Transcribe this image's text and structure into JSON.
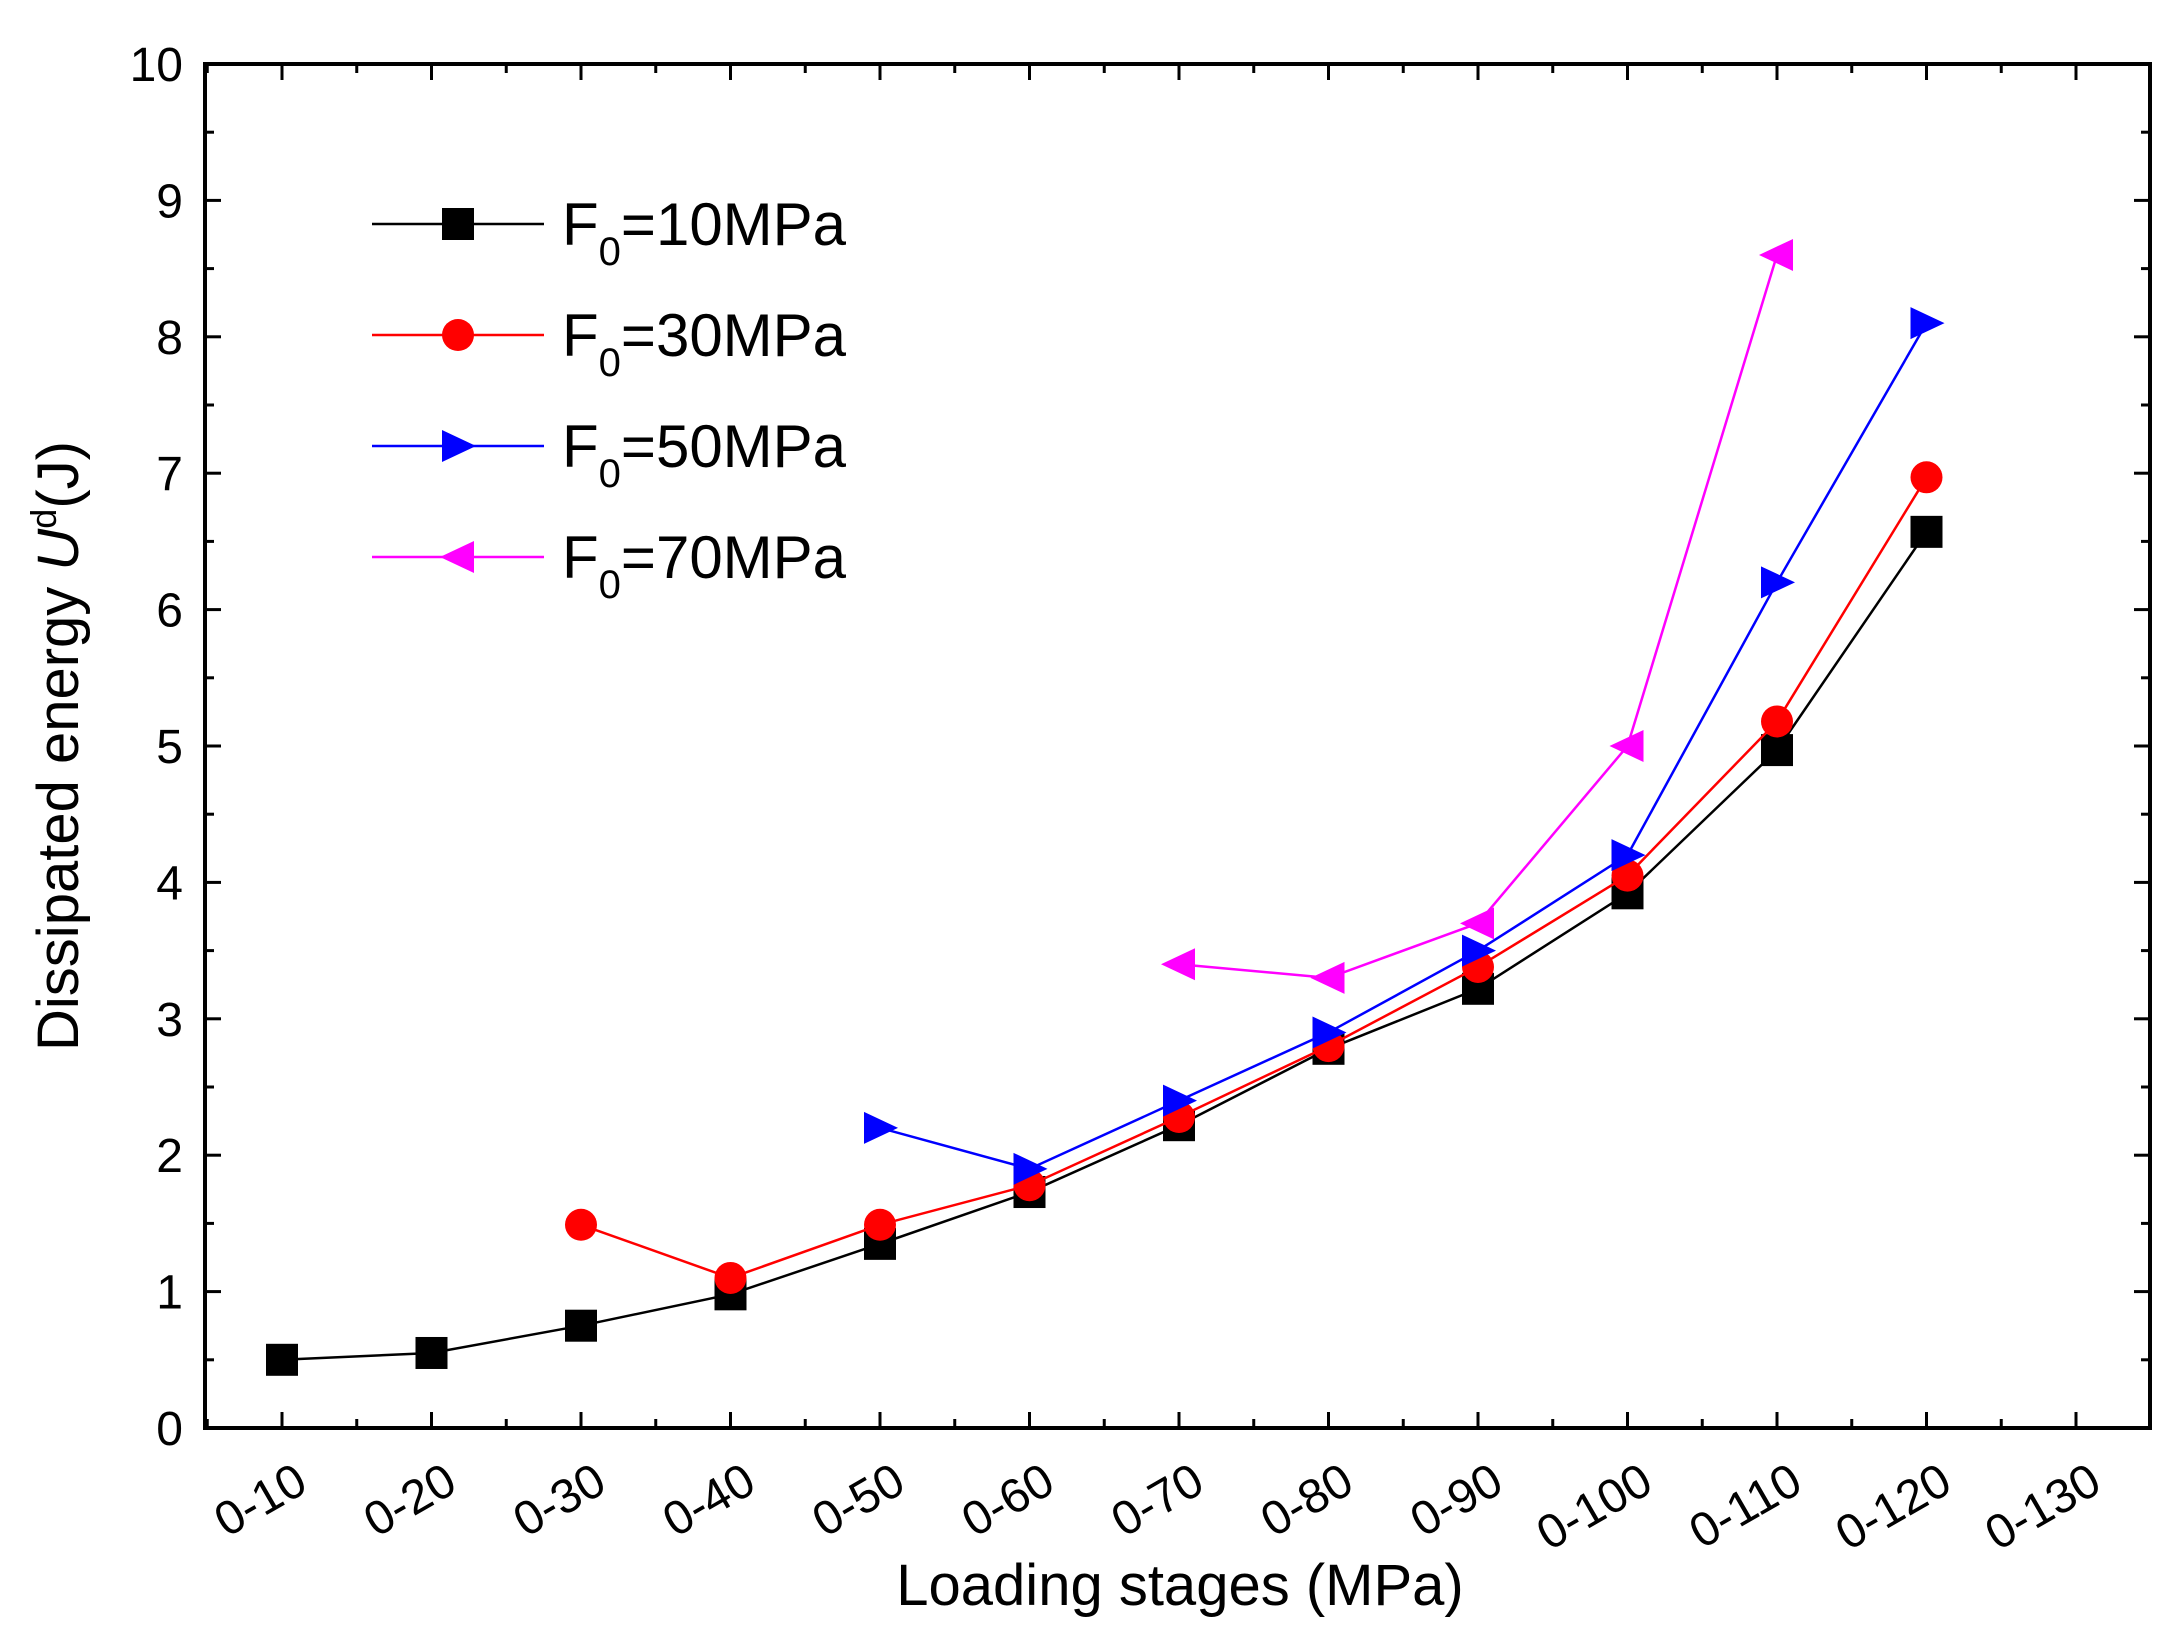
{
  "chart_data": {
    "type": "line",
    "xlabel": "Loading stages (MPa)",
    "ylabel_parts": {
      "prefix": "Dissipated energy ",
      "symbol": "U",
      "superscript": "d",
      "suffix": "(J)"
    },
    "categories": [
      "0-10",
      "0-20",
      "0-30",
      "0-40",
      "0-50",
      "0-60",
      "0-70",
      "0-80",
      "0-90",
      "0-100",
      "0-110",
      "0-120",
      "0-130"
    ],
    "ylim": [
      0,
      10
    ],
    "yticks": [
      "0",
      "1",
      "2",
      "3",
      "4",
      "5",
      "6",
      "7",
      "8",
      "9",
      "10"
    ],
    "grid": false,
    "legend_position": "top-left",
    "series": [
      {
        "name": "F0=10MPa",
        "legend": {
          "main": "F",
          "sub": "0",
          "rest": "=10MPa"
        },
        "color": "#000000",
        "marker": "square",
        "values": [
          0.5,
          0.55,
          0.75,
          0.98,
          1.35,
          1.73,
          2.22,
          2.78,
          3.22,
          3.92,
          4.97,
          6.57,
          null
        ]
      },
      {
        "name": "F0=30MPa",
        "legend": {
          "main": "F",
          "sub": "0",
          "rest": "=30MPa"
        },
        "color": "#ff0000",
        "marker": "circle",
        "values": [
          null,
          null,
          1.49,
          1.1,
          1.49,
          1.78,
          2.28,
          2.8,
          3.38,
          4.05,
          5.18,
          6.97,
          null
        ]
      },
      {
        "name": "F0=50MPa",
        "legend": {
          "main": "F",
          "sub": "0",
          "rest": "=50MPa"
        },
        "color": "#0000ff",
        "marker": "triangle-right",
        "values": [
          null,
          null,
          null,
          null,
          2.2,
          1.9,
          2.4,
          2.9,
          3.5,
          4.2,
          6.2,
          8.1,
          null
        ]
      },
      {
        "name": "F0=70MPa",
        "legend": {
          "main": "F",
          "sub": "0",
          "rest": "=70MPa"
        },
        "color": "#ff00ff",
        "marker": "triangle-left",
        "values": [
          null,
          null,
          null,
          null,
          null,
          null,
          3.4,
          3.3,
          3.7,
          5.0,
          8.6,
          null,
          null
        ]
      }
    ]
  }
}
